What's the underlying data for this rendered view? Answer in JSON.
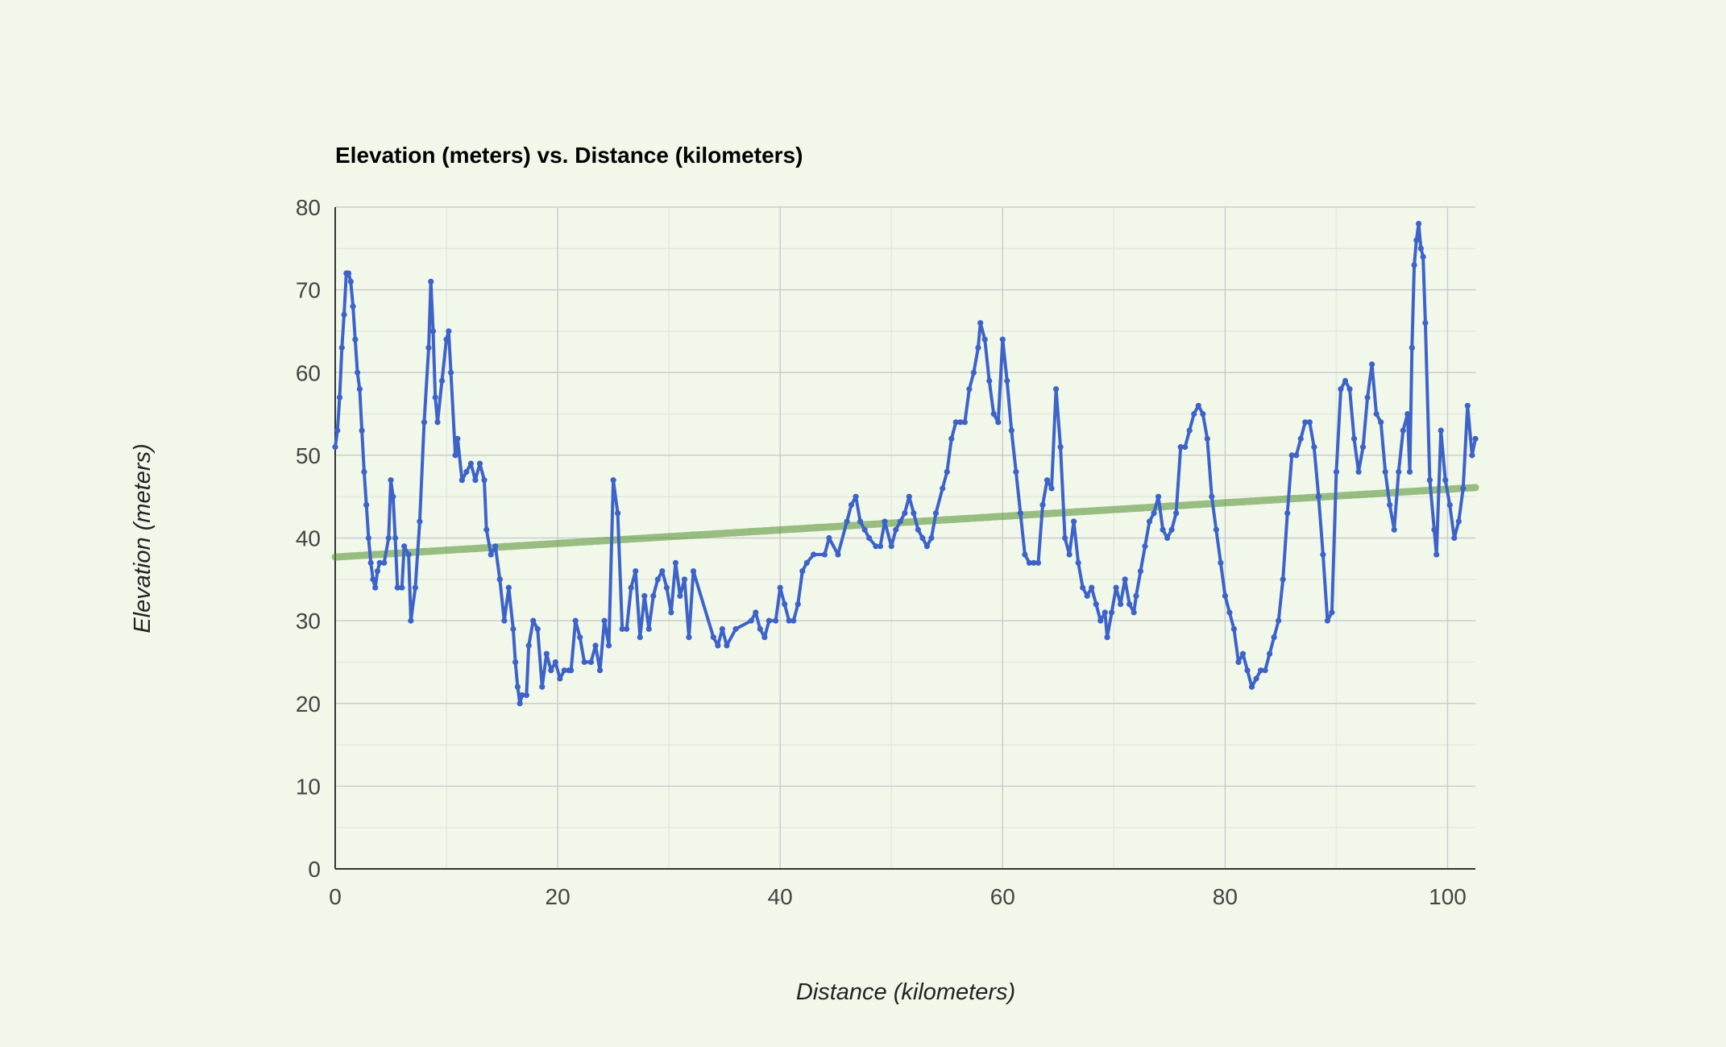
{
  "chart_data": {
    "type": "line",
    "title": "Elevation (meters) vs. Distance (kilometers)",
    "xlabel": "Distance (kilometers)",
    "ylabel": "Elevation (meters)",
    "xlim": [
      0,
      102.5
    ],
    "ylim": [
      0,
      80
    ],
    "x_ticks": [
      0,
      20,
      40,
      60,
      80,
      100
    ],
    "y_ticks": [
      0,
      10,
      20,
      30,
      40,
      50,
      60,
      70,
      80
    ],
    "grid": true,
    "legend": "none",
    "colors": {
      "series": "#3d63c9",
      "trendline": "#4c8c2a",
      "background": "#f1f8ea",
      "grid_major": "#cccccc",
      "grid_minor": "#e3e8dd"
    },
    "series": [
      {
        "values": [
          [
            0,
            51
          ],
          [
            0.2,
            53
          ],
          [
            0.4,
            57
          ],
          [
            0.6,
            63
          ],
          [
            0.8,
            67
          ],
          [
            1.0,
            72
          ],
          [
            1.2,
            72
          ],
          [
            1.4,
            71
          ],
          [
            1.6,
            68
          ],
          [
            1.8,
            64
          ],
          [
            2.0,
            60
          ],
          [
            2.2,
            58
          ],
          [
            2.4,
            53
          ],
          [
            2.6,
            48
          ],
          [
            2.8,
            44
          ],
          [
            3.0,
            40
          ],
          [
            3.2,
            37
          ],
          [
            3.4,
            35
          ],
          [
            3.6,
            34
          ],
          [
            3.8,
            36
          ],
          [
            4.0,
            37
          ],
          [
            4.4,
            37
          ],
          [
            4.8,
            40
          ],
          [
            5.0,
            47
          ],
          [
            5.2,
            45
          ],
          [
            5.4,
            40
          ],
          [
            5.6,
            34
          ],
          [
            6.0,
            34
          ],
          [
            6.2,
            39
          ],
          [
            6.6,
            38
          ],
          [
            6.8,
            30
          ],
          [
            7.2,
            34
          ],
          [
            7.6,
            42
          ],
          [
            8.0,
            54
          ],
          [
            8.4,
            63
          ],
          [
            8.6,
            71
          ],
          [
            8.8,
            65
          ],
          [
            9.0,
            57
          ],
          [
            9.2,
            54
          ],
          [
            9.6,
            59
          ],
          [
            10.0,
            64
          ],
          [
            10.2,
            65
          ],
          [
            10.4,
            60
          ],
          [
            10.8,
            50
          ],
          [
            11.0,
            52
          ],
          [
            11.4,
            47
          ],
          [
            11.8,
            48
          ],
          [
            12.2,
            49
          ],
          [
            12.6,
            47
          ],
          [
            13.0,
            49
          ],
          [
            13.4,
            47
          ],
          [
            13.6,
            41
          ],
          [
            14.0,
            38
          ],
          [
            14.4,
            39
          ],
          [
            14.8,
            35
          ],
          [
            15.2,
            30
          ],
          [
            15.6,
            34
          ],
          [
            16.0,
            29
          ],
          [
            16.2,
            25
          ],
          [
            16.4,
            22
          ],
          [
            16.6,
            20
          ],
          [
            16.8,
            21
          ],
          [
            17.2,
            21
          ],
          [
            17.4,
            27
          ],
          [
            17.8,
            30
          ],
          [
            18.2,
            29
          ],
          [
            18.6,
            22
          ],
          [
            19.0,
            26
          ],
          [
            19.4,
            24
          ],
          [
            19.8,
            25
          ],
          [
            20.2,
            23
          ],
          [
            20.6,
            24
          ],
          [
            21.0,
            24
          ],
          [
            21.2,
            24
          ],
          [
            21.6,
            30
          ],
          [
            22.0,
            28
          ],
          [
            22.4,
            25
          ],
          [
            23.0,
            25
          ],
          [
            23.4,
            27
          ],
          [
            23.8,
            24
          ],
          [
            24.2,
            30
          ],
          [
            24.6,
            27
          ],
          [
            25.0,
            47
          ],
          [
            25.4,
            43
          ],
          [
            25.8,
            29
          ],
          [
            26.2,
            29
          ],
          [
            26.6,
            34
          ],
          [
            27.0,
            36
          ],
          [
            27.4,
            28
          ],
          [
            27.8,
            33
          ],
          [
            28.2,
            29
          ],
          [
            28.6,
            33
          ],
          [
            29.0,
            35
          ],
          [
            29.4,
            36
          ],
          [
            29.8,
            34
          ],
          [
            30.2,
            31
          ],
          [
            30.6,
            37
          ],
          [
            31.0,
            33
          ],
          [
            31.4,
            35
          ],
          [
            31.8,
            28
          ],
          [
            32.2,
            36
          ],
          [
            34.0,
            28
          ],
          [
            34.4,
            27
          ],
          [
            34.8,
            29
          ],
          [
            35.2,
            27
          ],
          [
            36.0,
            29
          ],
          [
            37.4,
            30
          ],
          [
            37.8,
            31
          ],
          [
            38.2,
            29
          ],
          [
            38.6,
            28
          ],
          [
            39.0,
            30
          ],
          [
            39.6,
            30
          ],
          [
            40.0,
            34
          ],
          [
            40.4,
            32
          ],
          [
            40.8,
            30
          ],
          [
            41.2,
            30
          ],
          [
            41.6,
            32
          ],
          [
            42.0,
            36
          ],
          [
            42.4,
            37
          ],
          [
            43.0,
            38
          ],
          [
            44.0,
            38
          ],
          [
            44.4,
            40
          ],
          [
            45.2,
            38
          ],
          [
            46.0,
            42
          ],
          [
            46.4,
            44
          ],
          [
            46.8,
            45
          ],
          [
            47.2,
            42
          ],
          [
            47.6,
            41
          ],
          [
            48.0,
            40
          ],
          [
            48.6,
            39
          ],
          [
            49.0,
            39
          ],
          [
            49.4,
            42
          ],
          [
            50.0,
            39
          ],
          [
            50.4,
            41
          ],
          [
            50.8,
            42
          ],
          [
            51.2,
            43
          ],
          [
            51.6,
            45
          ],
          [
            52.0,
            43
          ],
          [
            52.4,
            41
          ],
          [
            52.8,
            40
          ],
          [
            53.2,
            39
          ],
          [
            53.6,
            40
          ],
          [
            54.0,
            43
          ],
          [
            54.6,
            46
          ],
          [
            55.0,
            48
          ],
          [
            55.4,
            52
          ],
          [
            55.8,
            54
          ],
          [
            56.2,
            54
          ],
          [
            56.6,
            54
          ],
          [
            57.0,
            58
          ],
          [
            57.4,
            60
          ],
          [
            57.8,
            63
          ],
          [
            58.0,
            66
          ],
          [
            58.4,
            64
          ],
          [
            58.8,
            59
          ],
          [
            59.2,
            55
          ],
          [
            59.6,
            54
          ],
          [
            60.0,
            64
          ],
          [
            60.4,
            59
          ],
          [
            60.8,
            53
          ],
          [
            61.2,
            48
          ],
          [
            61.6,
            43
          ],
          [
            62.0,
            38
          ],
          [
            62.4,
            37
          ],
          [
            62.8,
            37
          ],
          [
            63.2,
            37
          ],
          [
            63.6,
            44
          ],
          [
            64.0,
            47
          ],
          [
            64.4,
            46
          ],
          [
            64.8,
            58
          ],
          [
            65.2,
            51
          ],
          [
            65.6,
            40
          ],
          [
            66.0,
            38
          ],
          [
            66.4,
            42
          ],
          [
            66.8,
            37
          ],
          [
            67.2,
            34
          ],
          [
            67.6,
            33
          ],
          [
            68.0,
            34
          ],
          [
            68.4,
            32
          ],
          [
            68.8,
            30
          ],
          [
            69.2,
            31
          ],
          [
            69.4,
            28
          ],
          [
            69.8,
            31
          ],
          [
            70.2,
            34
          ],
          [
            70.6,
            32
          ],
          [
            71.0,
            35
          ],
          [
            71.4,
            32
          ],
          [
            71.8,
            31
          ],
          [
            72.0,
            33
          ],
          [
            72.4,
            36
          ],
          [
            72.8,
            39
          ],
          [
            73.2,
            42
          ],
          [
            73.6,
            43
          ],
          [
            74.0,
            45
          ],
          [
            74.4,
            41
          ],
          [
            74.8,
            40
          ],
          [
            75.2,
            41
          ],
          [
            75.6,
            43
          ],
          [
            76.0,
            51
          ],
          [
            76.4,
            51
          ],
          [
            76.8,
            53
          ],
          [
            77.2,
            55
          ],
          [
            77.6,
            56
          ],
          [
            78.0,
            55
          ],
          [
            78.4,
            52
          ],
          [
            78.8,
            45
          ],
          [
            79.2,
            41
          ],
          [
            79.6,
            37
          ],
          [
            80.0,
            33
          ],
          [
            80.4,
            31
          ],
          [
            80.8,
            29
          ],
          [
            81.2,
            25
          ],
          [
            81.6,
            26
          ],
          [
            82.0,
            24
          ],
          [
            82.4,
            22
          ],
          [
            82.8,
            23
          ],
          [
            83.2,
            24
          ],
          [
            83.6,
            24
          ],
          [
            84.0,
            26
          ],
          [
            84.4,
            28
          ],
          [
            84.8,
            30
          ],
          [
            85.2,
            35
          ],
          [
            85.6,
            43
          ],
          [
            86.0,
            50
          ],
          [
            86.4,
            50
          ],
          [
            86.8,
            52
          ],
          [
            87.2,
            54
          ],
          [
            87.6,
            54
          ],
          [
            88.0,
            51
          ],
          [
            88.4,
            45
          ],
          [
            88.8,
            38
          ],
          [
            89.2,
            30
          ],
          [
            89.6,
            31
          ],
          [
            90.0,
            48
          ],
          [
            90.4,
            58
          ],
          [
            90.8,
            59
          ],
          [
            91.2,
            58
          ],
          [
            91.6,
            52
          ],
          [
            92.0,
            48
          ],
          [
            92.4,
            51
          ],
          [
            92.8,
            57
          ],
          [
            93.2,
            61
          ],
          [
            93.6,
            55
          ],
          [
            94.0,
            54
          ],
          [
            94.4,
            48
          ],
          [
            94.8,
            44
          ],
          [
            95.2,
            41
          ],
          [
            95.6,
            48
          ],
          [
            96.0,
            53
          ],
          [
            96.4,
            55
          ],
          [
            96.6,
            48
          ],
          [
            96.8,
            63
          ],
          [
            97.0,
            73
          ],
          [
            97.2,
            76
          ],
          [
            97.4,
            78
          ],
          [
            97.6,
            75
          ],
          [
            97.8,
            74
          ],
          [
            98.0,
            66
          ],
          [
            98.4,
            47
          ],
          [
            98.8,
            41
          ],
          [
            99.0,
            38
          ],
          [
            99.4,
            53
          ],
          [
            99.8,
            47
          ],
          [
            100.2,
            44
          ],
          [
            100.6,
            40
          ],
          [
            101.0,
            42
          ],
          [
            101.4,
            46
          ],
          [
            101.8,
            56
          ],
          [
            102.2,
            50
          ],
          [
            102.5,
            52
          ]
        ]
      }
    ],
    "trendline": {
      "type": "linear",
      "x": [
        0,
        102.5
      ],
      "y": [
        37.7,
        46.1
      ]
    }
  }
}
